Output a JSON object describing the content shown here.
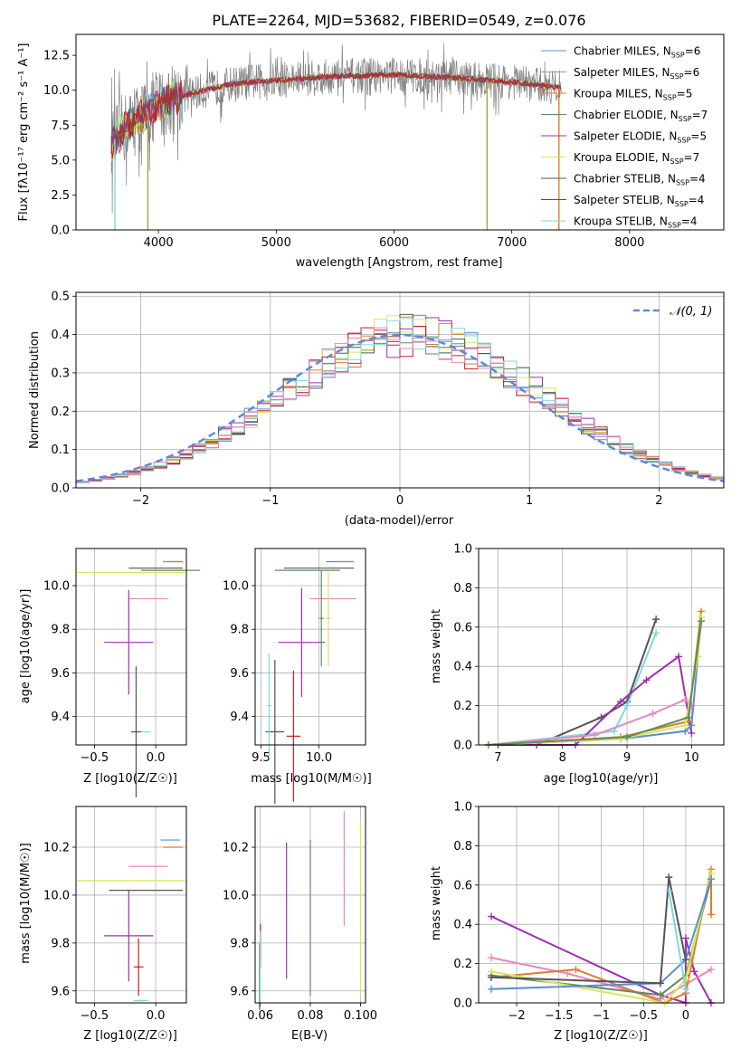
{
  "figure": {
    "title": "PLATE=2264, MJD=53682, FIBERID=0549, z=0.076"
  },
  "colors": {
    "Chabrier MILES": "#5b8bd6",
    "Salpeter MILES": "#e8e8e8",
    "Kroupa MILES": "#e07b2a",
    "Chabrier ELODIE": "#5e8c5e",
    "Salpeter ELODIE": "#9b30b0",
    "Kroupa ELODIE": "#d6e657",
    "Chabrier STELIB": "#555555",
    "Salpeter STELIB": "#cc1f1f",
    "Kroupa STELIB": "#80d8dc",
    "pink": "#e888c0",
    "data": "#808080"
  },
  "chart_data": [
    {
      "id": "spectrum",
      "type": "line",
      "title": "PLATE=2264, MJD=53682, FIBERID=0549, z=0.076",
      "xlabel": "wavelength [Angstrom, rest frame]",
      "ylabel": "Flux [fλ10⁻¹⁷ erg cm⁻² s⁻¹ A⁻¹]",
      "xlim": [
        3300,
        8800
      ],
      "ylim": [
        0,
        14
      ],
      "xticks": [
        4000,
        5000,
        6000,
        7000,
        8000
      ],
      "yticks": [
        0.0,
        2.5,
        5.0,
        7.5,
        10.0,
        12.5
      ],
      "legend_position": "top-right",
      "legend": [
        {
          "label": "Chabrier MILES, N",
          "sub": "SSP",
          "tail": "=6",
          "color": "#5b8bd6"
        },
        {
          "label": "Salpeter MILES, N",
          "sub": "SSP",
          "tail": "=6",
          "color": "#e8e8e8"
        },
        {
          "label": "Kroupa MILES, N",
          "sub": "SSP",
          "tail": "=5",
          "color": "#e07b2a"
        },
        {
          "label": "Chabrier ELODIE, N",
          "sub": "SSP",
          "tail": "=7",
          "color": "#5e8c5e"
        },
        {
          "label": "Salpeter ELODIE, N",
          "sub": "SSP",
          "tail": "=5",
          "color": "#9b30b0"
        },
        {
          "label": "Kroupa ELODIE, N",
          "sub": "SSP",
          "tail": "=7",
          "color": "#d6e657"
        },
        {
          "label": "Chabrier STELIB, N",
          "sub": "SSP",
          "tail": "=4",
          "color": "#555555"
        },
        {
          "label": "Salpeter STELIB, N",
          "sub": "SSP",
          "tail": "=4",
          "color": "#cc1f1f"
        },
        {
          "label": "Kroupa STELIB, N",
          "sub": "SSP",
          "tail": "=4",
          "color": "#80d8dc"
        }
      ],
      "continuum": [
        [
          3600,
          6.2
        ],
        [
          3700,
          7.2
        ],
        [
          3800,
          7.8
        ],
        [
          3900,
          8.4
        ],
        [
          4000,
          9.0
        ],
        [
          4200,
          9.6
        ],
        [
          4400,
          10.0
        ],
        [
          4600,
          10.4
        ],
        [
          4800,
          10.6
        ],
        [
          5000,
          10.7
        ],
        [
          5500,
          11.0
        ],
        [
          6000,
          11.1
        ],
        [
          6500,
          10.9
        ],
        [
          7000,
          10.6
        ],
        [
          7200,
          10.4
        ],
        [
          7400,
          10.2
        ]
      ],
      "spikes": [
        {
          "x": 3630,
          "y": 0,
          "color": "#80d8dc"
        },
        {
          "x": 3910,
          "y": 0,
          "color": "#a8a050"
        },
        {
          "x": 6790,
          "y": 0,
          "color": "#a8a050"
        },
        {
          "x": 7400,
          "y": 0,
          "color": "#e07b2a"
        }
      ]
    },
    {
      "id": "residuals",
      "type": "line",
      "xlabel": "(data-model)/error",
      "ylabel": "Normed distribution",
      "xlim": [
        -2.5,
        2.5
      ],
      "ylim": [
        0,
        0.51
      ],
      "xticks": [
        -2,
        -1,
        0,
        1,
        2
      ],
      "yticks": [
        0.0,
        0.1,
        0.2,
        0.3,
        0.4,
        0.5
      ],
      "legend": [
        {
          "label": "𝒩(0, 1)",
          "color": "#5b8bd6",
          "style": "dashed"
        }
      ],
      "legend_position": "top-right",
      "bin_width": 0.1,
      "bin_start": -2.5
    },
    {
      "id": "age-vs-Z",
      "type": "scatter",
      "xlabel": "Z [log10(Z/Z☉)]",
      "ylabel": "age  [log10(age/yr)]",
      "xlim": [
        -0.65,
        0.25
      ],
      "ylim": [
        9.27,
        10.17
      ],
      "xticks": [
        -0.5,
        0.0
      ],
      "yticks": [
        9.4,
        9.6,
        9.8,
        10.0
      ],
      "points": [
        {
          "color": "#5b8bd6",
          "x": 0.14,
          "y": 10.11,
          "xe": 0.08,
          "ye": 0.0
        },
        {
          "color": "#e07b2a",
          "x": 0.14,
          "y": 10.11,
          "xe": 0.08,
          "ye": 0.0
        },
        {
          "color": "#5e8c5e",
          "x": 0.12,
          "y": 10.07,
          "xe": 0.24,
          "ye": 0.0
        },
        {
          "color": "#555555",
          "x": 0.0,
          "y": 10.08,
          "xe": 0.22,
          "ye": 0.0
        },
        {
          "color": "#d6e657",
          "x": -0.2,
          "y": 10.06,
          "xe": 0.44,
          "ye": 0.0
        },
        {
          "color": "#e888c0",
          "x": -0.06,
          "y": 9.94,
          "xe": 0.16,
          "ye": 0.0
        },
        {
          "color": "#9b30b0",
          "x": -0.22,
          "y": 9.74,
          "xe": 0.2,
          "ye": 0.24
        },
        {
          "color": "#80d8dc",
          "x": -0.12,
          "y": 9.33,
          "xe": 0.08,
          "ye": 0.0
        },
        {
          "color": "#555555",
          "x": -0.16,
          "y": 9.33,
          "xe": 0.04,
          "ye": 0.3
        }
      ]
    },
    {
      "id": "age-vs-mass",
      "type": "scatter",
      "xlabel": "mass [log10(M/M☉)]",
      "ylabel": "",
      "xlim": [
        9.45,
        10.4
      ],
      "ylim": [
        9.27,
        10.17
      ],
      "xticks": [
        9.5,
        10.0
      ],
      "yticks": [
        9.4,
        9.6,
        9.8,
        10.0
      ]
    },
    {
      "id": "weight-vs-age",
      "type": "line",
      "xlabel": "age  [log10(age/yr)]",
      "ylabel": "mass weight",
      "xlim": [
        6.7,
        10.5
      ],
      "ylim": [
        0,
        1.0
      ],
      "xticks": [
        7,
        8,
        9,
        10
      ],
      "yticks": [
        0.0,
        0.2,
        0.4,
        0.6,
        0.8,
        1.0
      ],
      "series": [
        {
          "color": "#555555",
          "x": [
            6.85,
            7.6,
            8.6,
            9.0,
            9.45
          ],
          "y": [
            0.0,
            0.0,
            0.14,
            0.22,
            0.64
          ]
        },
        {
          "color": "#80d8dc",
          "x": [
            6.85,
            8.8,
            9.0,
            9.45
          ],
          "y": [
            0.0,
            0.07,
            0.2,
            0.57
          ]
        },
        {
          "color": "#9b30b0",
          "x": [
            6.85,
            8.2,
            8.9,
            9.3,
            9.8,
            10.0
          ],
          "y": [
            0.0,
            0.0,
            0.22,
            0.33,
            0.45,
            0.06
          ]
        },
        {
          "color": "#e888c0",
          "x": [
            6.85,
            8.5,
            9.4,
            9.9,
            10.0
          ],
          "y": [
            0.0,
            0.05,
            0.16,
            0.23,
            0.2
          ]
        },
        {
          "color": "#5b8bd6",
          "x": [
            6.85,
            8.9,
            9.9,
            10.0,
            10.15
          ],
          "y": [
            0.0,
            0.03,
            0.07,
            0.1,
            0.63
          ]
        },
        {
          "color": "#e07b2a",
          "x": [
            6.85,
            8.9,
            9.95,
            10.15
          ],
          "y": [
            0.0,
            0.04,
            0.12,
            0.68
          ]
        },
        {
          "color": "#d6e657",
          "x": [
            6.85,
            8.9,
            9.9,
            10.1,
            10.15
          ],
          "y": [
            0.0,
            0.03,
            0.1,
            0.45,
            0.65
          ]
        },
        {
          "color": "#5e8c5e",
          "x": [
            6.85,
            9.0,
            9.95,
            10.15
          ],
          "y": [
            0.0,
            0.04,
            0.14,
            0.63
          ]
        }
      ]
    },
    {
      "id": "mass-vs-Z",
      "type": "scatter",
      "xlabel": "Z [log10(Z/Z☉)]",
      "ylabel": "mass [log10(M/M☉)]",
      "xlim": [
        -0.65,
        0.25
      ],
      "ylim": [
        9.55,
        10.37
      ],
      "xticks": [
        -0.5,
        0.0
      ],
      "yticks": [
        9.6,
        9.8,
        10.0,
        10.2
      ],
      "points": [
        {
          "color": "#5b8bd6",
          "x": 0.12,
          "y": 10.23,
          "xe": 0.08,
          "ye": 0.0
        },
        {
          "color": "#e07b2a",
          "x": 0.14,
          "y": 10.2,
          "xe": 0.08,
          "ye": 0.0
        },
        {
          "color": "#e888c0",
          "x": -0.06,
          "y": 10.12,
          "xe": 0.16,
          "ye": 0.0
        },
        {
          "color": "#d6e657",
          "x": -0.2,
          "y": 10.06,
          "xe": 0.44,
          "ye": 0.0
        },
        {
          "color": "#555555",
          "x": -0.08,
          "y": 10.02,
          "xe": 0.3,
          "ye": 0.0
        },
        {
          "color": "#9b30b0",
          "x": -0.22,
          "y": 9.83,
          "xe": 0.2,
          "ye": 0.19
        },
        {
          "color": "#cc1f1f",
          "x": -0.14,
          "y": 9.7,
          "xe": 0.04,
          "ye": 0.12
        },
        {
          "color": "#80d8dc",
          "x": -0.12,
          "y": 9.56,
          "xe": 0.06,
          "ye": 0.0
        }
      ]
    },
    {
      "id": "mass-vs-ebv",
      "type": "scatter",
      "xlabel": "E(B-V)",
      "ylabel": "",
      "xlim": [
        0.058,
        0.102
      ],
      "ylim": [
        9.55,
        10.37
      ],
      "xticks": [
        0.06,
        0.08,
        0.1
      ],
      "xticklabels": [
        "0.06",
        "0.08",
        "0.100"
      ],
      "yticks": [
        9.6,
        9.8,
        10.0,
        10.2
      ],
      "bars": [
        {
          "color": "#cc1f1f",
          "x": 0.0601,
          "y1": 9.7,
          "y2": 9.88
        },
        {
          "color": "#555555",
          "x": 0.0598,
          "y1": 9.52,
          "y2": 9.8
        },
        {
          "color": "#9b30b0",
          "x": 0.0705,
          "y1": 9.65,
          "y2": 10.22
        },
        {
          "color": "#5e8c5e",
          "x": 0.08,
          "y1": 9.58,
          "y2": 10.23
        },
        {
          "color": "#e888c0",
          "x": 0.0935,
          "y1": 9.87,
          "y2": 10.35
        },
        {
          "color": "#d6e657",
          "x": 0.1,
          "y1": 9.58,
          "y2": 10.31
        }
      ]
    },
    {
      "id": "weight-vs-Z",
      "type": "line",
      "xlabel": "Z [log10(Z/Z☉)]",
      "ylabel": "mass weight",
      "xlim": [
        -2.45,
        0.45
      ],
      "ylim": [
        0,
        1.0
      ],
      "xticks": [
        -2.0,
        -1.5,
        -1.0,
        -0.5,
        0.0
      ],
      "yticks": [
        0.0,
        0.2,
        0.4,
        0.6,
        0.8,
        1.0
      ],
      "series": [
        {
          "color": "#9b30b0",
          "x": [
            -2.3,
            -0.3,
            -0.0,
            0.0,
            0.1,
            0.3
          ],
          "y": [
            0.44,
            0.04,
            0.0,
            0.33,
            0.16,
            0.0
          ]
        },
        {
          "color": "#e888c0",
          "x": [
            -2.3,
            -1.4,
            -0.3,
            0.3
          ],
          "y": [
            0.23,
            0.15,
            0.02,
            0.17
          ]
        },
        {
          "color": "#e07b2a",
          "x": [
            -2.3,
            -1.3,
            -0.25,
            0.0,
            0.3,
            0.3
          ],
          "y": [
            0.13,
            0.17,
            0.0,
            0.05,
            0.68,
            0.45
          ]
        },
        {
          "color": "#5e8c5e",
          "x": [
            -2.3,
            -0.3,
            0.0,
            0.3
          ],
          "y": [
            0.14,
            0.04,
            0.14,
            0.63
          ]
        },
        {
          "color": "#d6e657",
          "x": [
            -2.3,
            -0.25,
            0.0,
            0.3
          ],
          "y": [
            0.16,
            0.0,
            0.12,
            0.66
          ]
        },
        {
          "color": "#5b8bd6",
          "x": [
            -2.3,
            -0.3,
            0.0,
            0.3
          ],
          "y": [
            0.07,
            0.1,
            0.22,
            0.63
          ]
        },
        {
          "color": "#555555",
          "x": [
            -2.3,
            -0.3,
            -0.2,
            0.0
          ],
          "y": [
            0.13,
            0.1,
            0.64,
            0.22
          ]
        },
        {
          "color": "#80d8dc",
          "x": [
            -0.2,
            0.0
          ],
          "y": [
            0.57,
            0.07
          ]
        }
      ]
    }
  ]
}
